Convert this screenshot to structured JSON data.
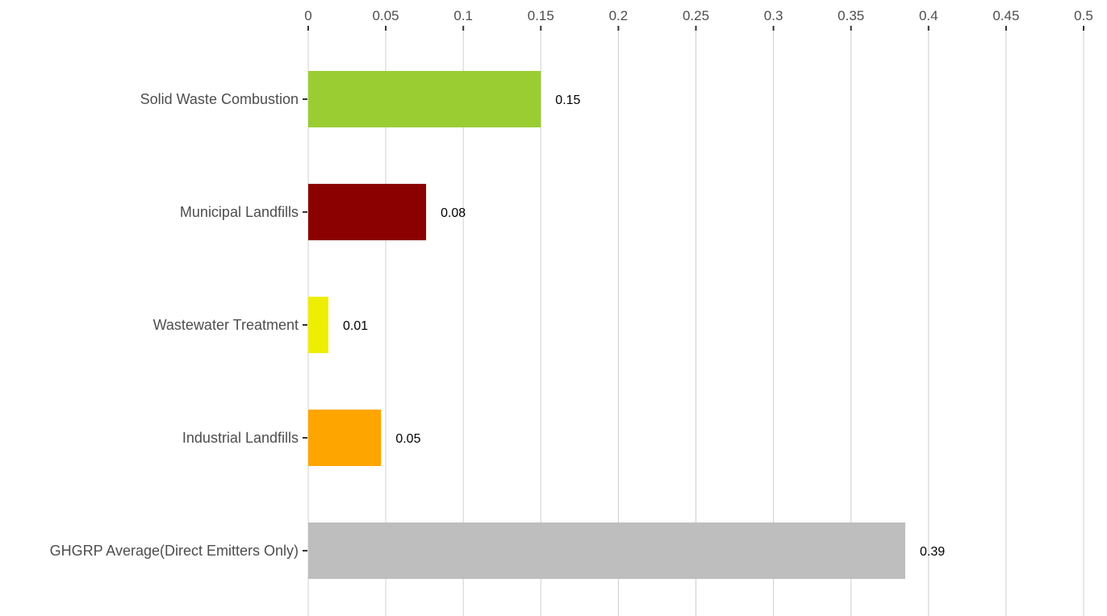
{
  "chart_data": {
    "type": "bar",
    "orientation": "horizontal",
    "title": "",
    "xlabel": "",
    "ylabel": "",
    "x_axis_position": "top",
    "grid": true,
    "xlim": [
      0,
      0.5
    ],
    "x_ticks": [
      0,
      0.05,
      0.1,
      0.15,
      0.2,
      0.25,
      0.3,
      0.35,
      0.4,
      0.45,
      0.5
    ],
    "x_tick_labels": [
      "0",
      "0.05",
      "0.1",
      "0.15",
      "0.2",
      "0.25",
      "0.3",
      "0.35",
      "0.4",
      "0.45",
      "0.5"
    ],
    "categories": [
      "Solid Waste Combustion",
      "Municipal Landfills",
      "Wastewater Treatment",
      "Industrial Landfills",
      "GHGRP Average(Direct Emitters Only)"
    ],
    "values": [
      0.15,
      0.076,
      0.013,
      0.047,
      0.385
    ],
    "data_labels": [
      "0.15",
      "0.08",
      "0.01",
      "0.05",
      "0.39"
    ],
    "colors": [
      "#9acd32",
      "#8b0000",
      "#eeee00",
      "#ffa500",
      "#bebebe"
    ]
  }
}
